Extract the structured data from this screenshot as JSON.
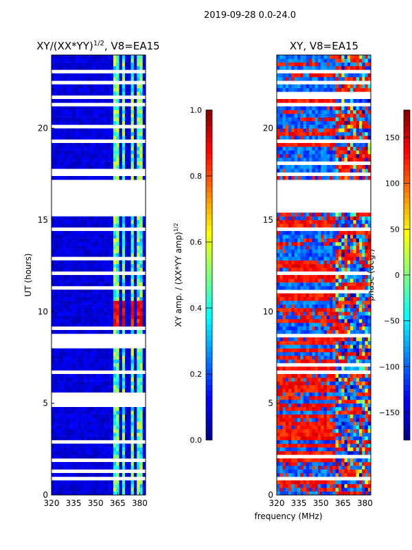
{
  "chart_data": [
    {
      "type": "heatmap",
      "title": "XY/(XX*YY)^1/2, V8=EA15",
      "title_main": "XY/(XX*YY)",
      "title_sup": "1/2",
      "title_tail": ", V8=EA15",
      "xlim": [
        320,
        384
      ],
      "ylim": [
        0,
        24
      ],
      "xticks": [
        "320",
        "335",
        "350",
        "365",
        "380"
      ],
      "xtick_values": [
        320,
        335,
        350,
        365,
        380
      ],
      "yticks": [
        "0",
        "5",
        "10",
        "15",
        "20"
      ],
      "ytick_values": [
        0,
        5,
        10,
        15,
        20
      ],
      "ylabel": "UT (hours)",
      "colorbar": {
        "label": "XY amp. / (XX*YY amp)",
        "label_sup": "1/2",
        "range": [
          0,
          1
        ],
        "ticks": [
          "0.0",
          "0.2",
          "0.4",
          "0.6",
          "0.8",
          "1.0"
        ],
        "tick_values": [
          0,
          0.2,
          0.4,
          0.6,
          0.8,
          1.0
        ],
        "colormap": "jet"
      },
      "bright_channels_mhz": [
        [
          363,
          367
        ],
        [
          369,
          371
        ],
        [
          374,
          377
        ],
        [
          379,
          382
        ]
      ],
      "high_amplitude_hours": [
        9,
        10.5
      ]
    },
    {
      "type": "heatmap",
      "title": "XY, V8=EA15",
      "xlim": [
        320,
        384
      ],
      "ylim": [
        0,
        24
      ],
      "xticks": [
        "320",
        "335",
        "350",
        "365",
        "380"
      ],
      "xtick_values": [
        320,
        335,
        350,
        365,
        380
      ],
      "yticks": [
        "0",
        "5",
        "10",
        "15",
        "20"
      ],
      "ytick_values": [
        0,
        5,
        10,
        15,
        20
      ],
      "colorbar": {
        "label": "phase (deg.)",
        "range": [
          -180,
          180
        ],
        "ticks": [
          "−150",
          "−100",
          "−50",
          "0",
          "50",
          "100",
          "150"
        ],
        "tick_values": [
          -150,
          -100,
          -50,
          0,
          50,
          100,
          150
        ],
        "colormap": "jet"
      }
    }
  ],
  "suptitle": "2019-09-28 0.0-24.0",
  "xlabel": "frequency (MHz)",
  "data_gaps_hours": [
    [
      15.5,
      17.2
    ],
    [
      19.2,
      19.4
    ],
    [
      21.2,
      21.45
    ],
    [
      22.5,
      22.6
    ],
    [
      23.1,
      23.3
    ],
    [
      12.0,
      12.2
    ],
    [
      6.7,
      6.85
    ],
    [
      8.6,
      8.75
    ],
    [
      0.85,
      1.05
    ],
    [
      5.0,
      5.1
    ]
  ]
}
